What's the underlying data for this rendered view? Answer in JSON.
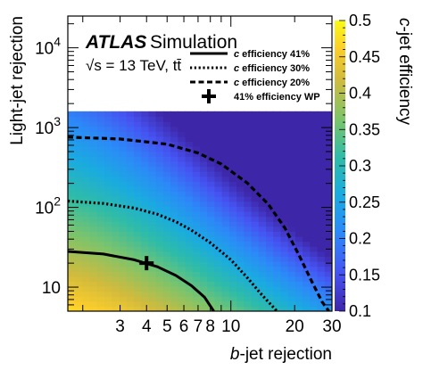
{
  "chart_data": {
    "type": "heatmap",
    "experiment": "ATLAS",
    "label": "Simulation",
    "energy_text": "√s = 13 TeV, tt̄",
    "xlabel_italic": "b",
    "xlabel_rest": "-jet rejection",
    "ylabel": "Light-jet rejection",
    "zlabel_italic": "c",
    "zlabel_rest": "-jet efficiency",
    "x_scale": "log",
    "y_scale": "log",
    "xlim": [
      1.7,
      30
    ],
    "ylim": [
      5,
      25000
    ],
    "zlim": [
      0.1,
      0.5
    ],
    "colormap": "viridis",
    "x_ticks": [
      {
        "value": 3,
        "label": "3"
      },
      {
        "value": 4,
        "label": "4"
      },
      {
        "value": 5,
        "label": "5"
      },
      {
        "value": 6,
        "label": "6"
      },
      {
        "value": 7,
        "label": "7"
      },
      {
        "value": 8,
        "label": "8"
      },
      {
        "value": 10,
        "label": "10"
      },
      {
        "value": 20,
        "label": "20"
      },
      {
        "value": 30,
        "label": "30"
      }
    ],
    "y_ticks": [
      {
        "value": 10,
        "base": "10",
        "exp": ""
      },
      {
        "value": 100,
        "base": "10",
        "exp": "2"
      },
      {
        "value": 1000,
        "base": "10",
        "exp": "3"
      },
      {
        "value": 10000,
        "base": "10",
        "exp": "4"
      }
    ],
    "z_ticks": [
      {
        "value": 0.1,
        "label": "0.1"
      },
      {
        "value": 0.15,
        "label": "0.15"
      },
      {
        "value": 0.2,
        "label": "0.2"
      },
      {
        "value": 0.25,
        "label": "0.25"
      },
      {
        "value": 0.3,
        "label": "0.3"
      },
      {
        "value": 0.35,
        "label": "0.35"
      },
      {
        "value": 0.4,
        "label": "0.4"
      },
      {
        "value": 0.45,
        "label": "0.45"
      },
      {
        "value": 0.5,
        "label": "0.5"
      }
    ],
    "heatmap_ymax": 1600,
    "contours": [
      {
        "name_italic": "c",
        "name_rest": " efficiency 41%",
        "style": "solid",
        "points": [
          [
            1.7,
            28
          ],
          [
            2.5,
            26
          ],
          [
            3.5,
            22
          ],
          [
            4.5,
            18
          ],
          [
            5.5,
            14
          ],
          [
            6.5,
            10.5
          ],
          [
            7.5,
            7.5
          ],
          [
            8.3,
            5
          ]
        ]
      },
      {
        "name_italic": "c",
        "name_rest": " efficiency 30%",
        "style": "dotted",
        "points": [
          [
            1.7,
            120
          ],
          [
            2.5,
            112
          ],
          [
            3.5,
            98
          ],
          [
            4.5,
            82
          ],
          [
            5.5,
            66
          ],
          [
            6.5,
            52
          ],
          [
            8,
            36
          ],
          [
            10,
            22
          ],
          [
            12,
            13
          ],
          [
            14,
            8
          ],
          [
            16.5,
            5
          ]
        ]
      },
      {
        "name_italic": "c",
        "name_rest": " efficiency 20%",
        "style": "dashed",
        "points": [
          [
            1.7,
            760
          ],
          [
            3,
            720
          ],
          [
            5,
            620
          ],
          [
            7,
            480
          ],
          [
            9,
            350
          ],
          [
            12,
            200
          ],
          [
            15,
            110
          ],
          [
            18,
            55
          ],
          [
            21,
            25
          ],
          [
            24,
            12
          ],
          [
            27,
            6.5
          ],
          [
            29,
            5
          ]
        ]
      }
    ],
    "working_point": {
      "label": "41% efficiency WP",
      "x": 4,
      "y": 20
    }
  }
}
